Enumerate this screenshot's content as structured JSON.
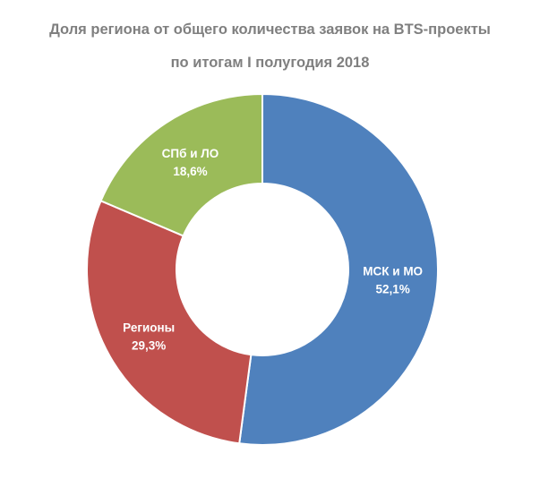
{
  "chart_data": {
    "type": "pie",
    "style": "donut",
    "title_lines": [
      "Доля региона от общего количества заявок на BTS-проекты",
      "по итогам I полугодия 2018"
    ],
    "unit": "%",
    "slices": [
      {
        "label": "МСК и МО",
        "value": 52.1,
        "value_label": "52,1%",
        "color": "#4f81bd"
      },
      {
        "label": "Регионы",
        "value": 29.3,
        "value_label": "29,3%",
        "color": "#c0504d"
      },
      {
        "label": "СПб и ЛО",
        "value": 18.6,
        "value_label": "18,6%",
        "color": "#9bbb59"
      }
    ],
    "legend": "none",
    "grid": false
  }
}
